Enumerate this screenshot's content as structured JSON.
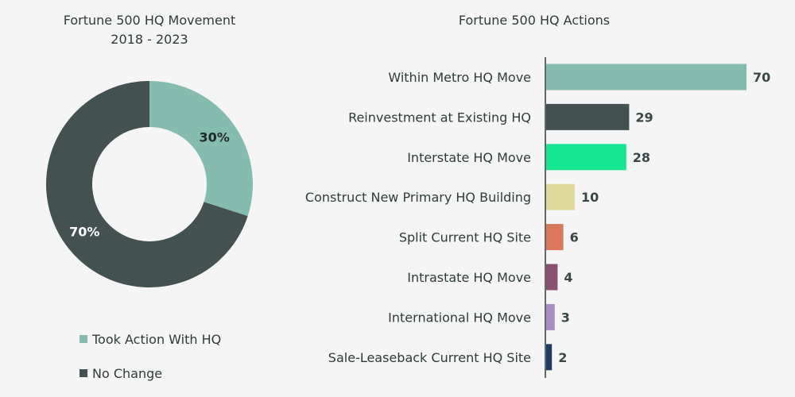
{
  "chart_data": [
    {
      "type": "pie",
      "variant": "donut",
      "title": "Fortune 500 HQ Movement",
      "subtitle": "2018 - 2023",
      "slices": [
        {
          "name": "Took Action With HQ",
          "value": 30,
          "label": "30%",
          "color": "#85bcaf"
        },
        {
          "name": "No Change",
          "value": 70,
          "label": "70%",
          "color": "#435151"
        }
      ],
      "legend_position": "bottom"
    },
    {
      "type": "bar",
      "orientation": "horizontal",
      "title": "Fortune 500 HQ Actions",
      "categories": [
        "Within Metro HQ Move",
        "Reinvestment at Existing HQ",
        "Interstate HQ Move",
        "Construct New Primary HQ Building",
        "Split Current HQ Site",
        "Intrastate HQ Move",
        "International HQ Move",
        "Sale-Leaseback Current HQ Site"
      ],
      "values": [
        70,
        29,
        28,
        10,
        6,
        4,
        3,
        2
      ],
      "colors": [
        "#85bcaf",
        "#435151",
        "#16e591",
        "#dedb9c",
        "#d9785c",
        "#8b4f6f",
        "#a98dc6",
        "#213a63"
      ],
      "grid": false
    }
  ]
}
